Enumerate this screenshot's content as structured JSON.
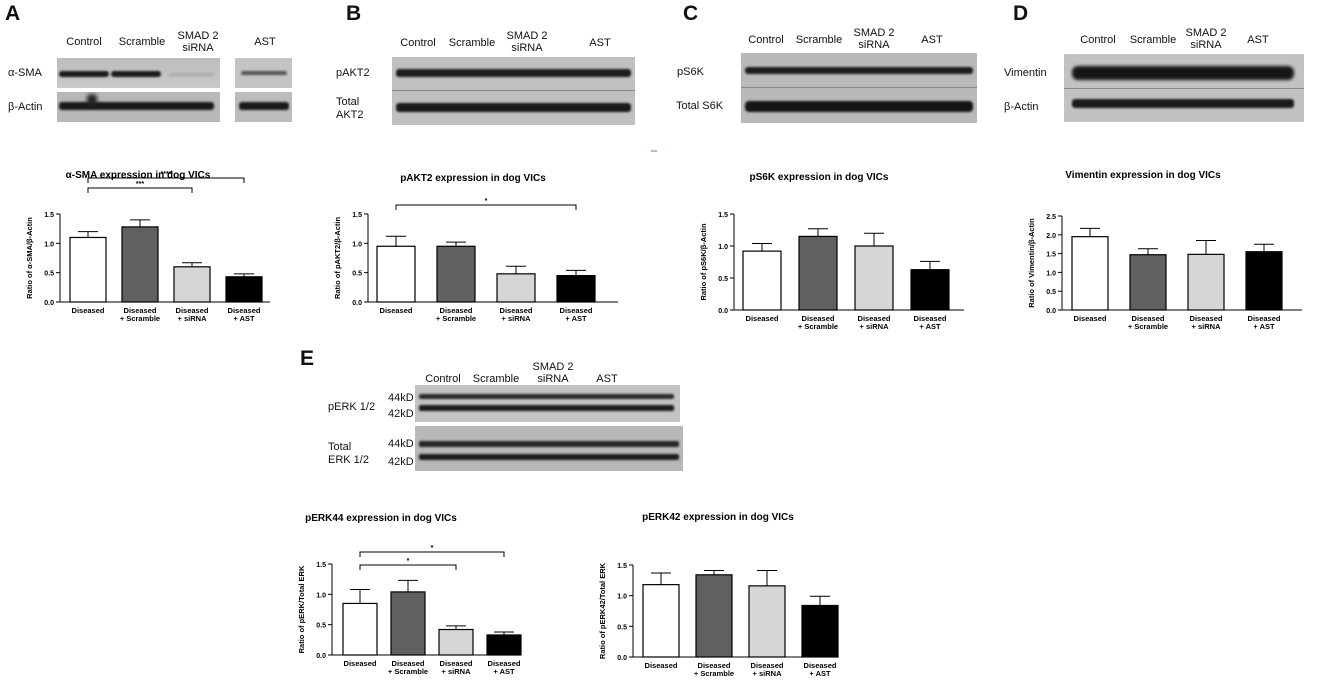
{
  "panels": [
    {
      "letter": "A",
      "lanes": [
        "Control",
        "Scramble",
        "SMAD 2\nsiRNA",
        "AST"
      ],
      "rows": [
        "α-SMA",
        "β-Actin"
      ]
    },
    {
      "letter": "B",
      "lanes": [
        "Control",
        "Scramble",
        "SMAD 2\nsiRNA",
        "AST"
      ],
      "rows": [
        "pAKT2",
        "Total\nAKT2"
      ]
    },
    {
      "letter": "C",
      "lanes": [
        "Control",
        "Scramble",
        "SMAD 2\nsiRNA",
        "AST"
      ],
      "rows": [
        "pS6K",
        "Total S6K"
      ]
    },
    {
      "letter": "D",
      "lanes": [
        "Control",
        "Scramble",
        "SMAD 2\nsiRNA",
        "AST"
      ],
      "rows": [
        "Vimentin",
        "β-Actin"
      ]
    },
    {
      "letter": "E",
      "lanes": [
        "Control",
        "Scramble",
        "SMAD 2\nsiRNA",
        "AST"
      ],
      "rows": [
        "pERK 1/2",
        "Total\nERK 1/2"
      ],
      "kd": [
        "44kD",
        "42kD",
        "44kD",
        "42kD"
      ]
    }
  ],
  "chart_data": [
    {
      "type": "bar",
      "title": "α-SMA expression in dog VICs",
      "ylabel": "Ratio of α-SMA/β-Actin",
      "categories": [
        "Diseased",
        "Diseased\n+ Scramble",
        "Diseased\n+ siRNA",
        "Diseased\n+ AST"
      ],
      "values": [
        1.1,
        1.28,
        0.6,
        0.43
      ],
      "errors": [
        0.1,
        0.12,
        0.07,
        0.05
      ],
      "colors": [
        "#ffffff",
        "#606060",
        "#d6d6d6",
        "#000000"
      ],
      "ylim": [
        0,
        1.5
      ],
      "yticks": [
        "0.0",
        "0.5",
        "1.0",
        "1.5"
      ],
      "sig": [
        {
          "from": 0,
          "to": 2,
          "label": "***"
        },
        {
          "from": 0,
          "to": 3,
          "label": "****"
        }
      ]
    },
    {
      "type": "bar",
      "title": "pAKT2 expression in dog VICs",
      "ylabel": "Ratio of pAKT2/β-Actin",
      "categories": [
        "Diseased",
        "Diseased\n+ Scramble",
        "Diseased\n+ siRNA",
        "Diseased\n+ AST"
      ],
      "values": [
        0.95,
        0.95,
        0.48,
        0.45
      ],
      "errors": [
        0.17,
        0.07,
        0.13,
        0.09
      ],
      "colors": [
        "#ffffff",
        "#606060",
        "#d6d6d6",
        "#000000"
      ],
      "ylim": [
        0,
        1.5
      ],
      "yticks": [
        "0.0",
        "0.5",
        "1.0",
        "1.5"
      ],
      "sig": [
        {
          "from": 0,
          "to": 3,
          "label": "*"
        }
      ]
    },
    {
      "type": "bar",
      "title": "pS6K expression in dog VICs",
      "ylabel": "Ratio of pS6K/β-Actin",
      "categories": [
        "Diseased",
        "Diseased\n+ Scramble",
        "Diseased\n+ siRNA",
        "Diseased\n+ AST"
      ],
      "values": [
        0.92,
        1.15,
        1.0,
        0.63
      ],
      "errors": [
        0.12,
        0.12,
        0.2,
        0.13
      ],
      "colors": [
        "#ffffff",
        "#606060",
        "#d6d6d6",
        "#000000"
      ],
      "ylim": [
        0,
        1.5
      ],
      "yticks": [
        "0.0",
        "0.5",
        "1.0",
        "1.5"
      ],
      "sig": []
    },
    {
      "type": "bar",
      "title": "Vimentin expression in dog VICs",
      "ylabel": "Ratio of Vimentin/β-Actin",
      "categories": [
        "Diseased",
        "Diseased\n+ Scramble",
        "Diseased\n+ siRNA",
        "Diseased\n+ AST"
      ],
      "values": [
        1.95,
        1.47,
        1.48,
        1.55
      ],
      "errors": [
        0.22,
        0.16,
        0.37,
        0.2
      ],
      "colors": [
        "#ffffff",
        "#606060",
        "#d6d6d6",
        "#000000"
      ],
      "ylim": [
        0,
        2.5
      ],
      "yticks": [
        "0.0",
        "0.5",
        "1.0",
        "1.5",
        "2.0",
        "2.5"
      ],
      "sig": []
    },
    {
      "type": "bar",
      "title": "pERK44 expression in dog VICs",
      "ylabel": "Ratio of pERK/Total ERK",
      "categories": [
        "Diseased",
        "Diseased\n+ Scramble",
        "Diseased\n+ siRNA",
        "Diseased\n+ AST"
      ],
      "values": [
        0.85,
        1.04,
        0.42,
        0.33
      ],
      "errors": [
        0.23,
        0.19,
        0.06,
        0.05
      ],
      "colors": [
        "#ffffff",
        "#606060",
        "#d6d6d6",
        "#000000"
      ],
      "ylim": [
        0,
        1.5
      ],
      "yticks": [
        "0.0",
        "0.5",
        "1.0",
        "1.5"
      ],
      "sig": [
        {
          "from": 0,
          "to": 2,
          "label": "*"
        },
        {
          "from": 0,
          "to": 3,
          "label": "*"
        }
      ]
    },
    {
      "type": "bar",
      "title": "pERK42 expression in dog VICs",
      "ylabel": "Ratio of pERK42/Total ERK",
      "categories": [
        "Diseased",
        "Diseased\n+ Scramble",
        "Diseased\n+ siRNA",
        "Diseased\n+ AST"
      ],
      "values": [
        1.18,
        1.34,
        1.16,
        0.84
      ],
      "errors": [
        0.19,
        0.07,
        0.25,
        0.15
      ],
      "colors": [
        "#ffffff",
        "#606060",
        "#d6d6d6",
        "#000000"
      ],
      "ylim": [
        0,
        1.5
      ],
      "yticks": [
        "0.0",
        "0.5",
        "1.0",
        "1.5"
      ],
      "sig": []
    }
  ]
}
